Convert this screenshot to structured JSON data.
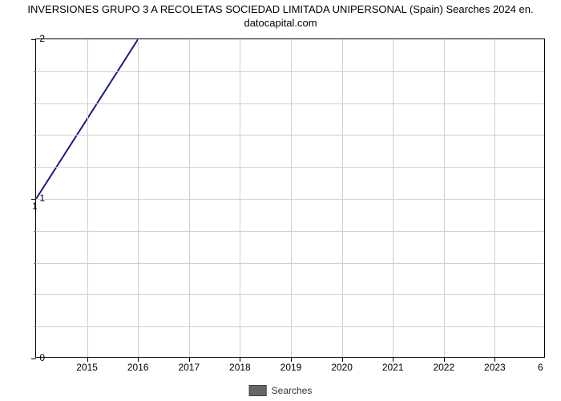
{
  "chart": {
    "type": "line",
    "title_line1": "INVERSIONES GRUPO 3 A RECOLETAS SOCIEDAD LIMITADA UNIPERSONAL (Spain) Searches 2024 en.",
    "title_line2": "datocapital.com",
    "title_fontsize": 13,
    "title_color": "#000000",
    "background_color": "#ffffff",
    "plot_border_color": "#000000",
    "grid_color": "#d0d0d0",
    "line_color": "#1a1a8a",
    "line_width": 2,
    "xlim": [
      2014,
      2024
    ],
    "ylim": [
      0,
      2
    ],
    "x_major_ticks": [
      2015,
      2016,
      2017,
      2018,
      2019,
      2020,
      2021,
      2022,
      2023
    ],
    "y_major_ticks": [
      0,
      1,
      2
    ],
    "y_minor_count_between": 4,
    "x_labels": [
      "2015",
      "2016",
      "2017",
      "2018",
      "2019",
      "2020",
      "2021",
      "2022",
      "2023"
    ],
    "y_labels": [
      "0",
      "1",
      "2"
    ],
    "axis_label_fontsize": 12,
    "series": {
      "label": "Searches",
      "x": [
        2014,
        2024
      ],
      "y": [
        1,
        6
      ],
      "point_annotations": [
        {
          "x": 2014,
          "y": 1,
          "text": "1",
          "va": "bottom",
          "ha": "left"
        },
        {
          "x": 2024,
          "y": 6,
          "text": "6",
          "va": "bottom",
          "ha": "right"
        }
      ]
    },
    "legend": {
      "position": "bottom-center",
      "swatch_color": "#666666",
      "text": "Searches",
      "fontsize": 12
    }
  }
}
